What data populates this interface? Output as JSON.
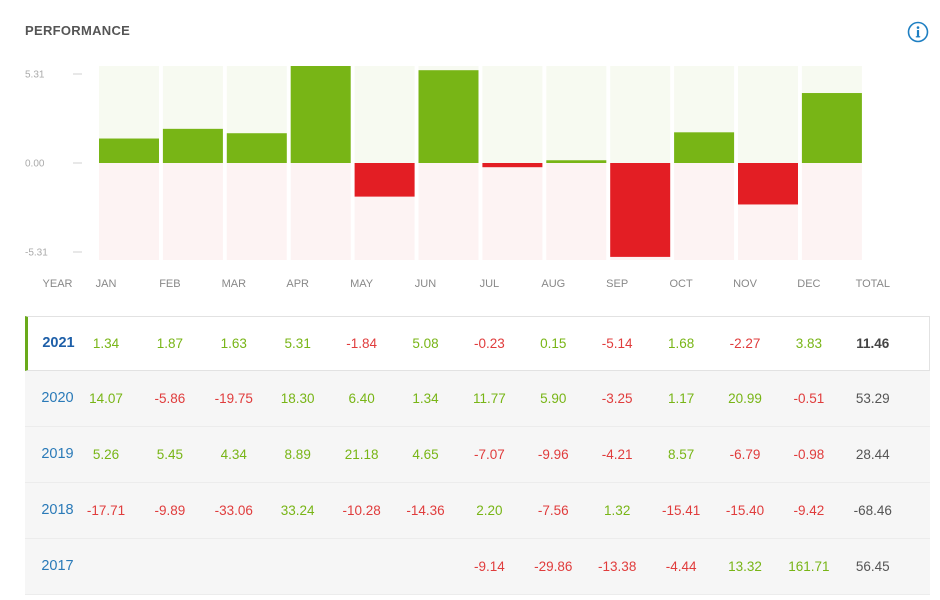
{
  "header": {
    "title": "PERFORMANCE",
    "info_icon": "info-icon"
  },
  "colors": {
    "positive": "#78b516",
    "negative": "#e31e24",
    "positive_bg": "#f7faf1",
    "negative_bg": "#fdf3f3",
    "year_link": "#2a7ab8",
    "selected_accent": "#6aaa1a"
  },
  "chart_data": {
    "type": "bar",
    "categories": [
      "JAN",
      "FEB",
      "MAR",
      "APR",
      "MAY",
      "JUN",
      "JUL",
      "AUG",
      "SEP",
      "OCT",
      "NOV",
      "DEC"
    ],
    "values": [
      1.34,
      1.87,
      1.63,
      5.31,
      -1.84,
      5.08,
      -0.23,
      0.15,
      -5.14,
      1.68,
      -2.27,
      3.83
    ],
    "ylim": [
      -5.31,
      5.31
    ],
    "yticks": [
      "5.31",
      "0.00",
      "-5.31"
    ],
    "year": "2021",
    "grid": false
  },
  "table": {
    "headers": [
      "YEAR",
      "JAN",
      "FEB",
      "MAR",
      "APR",
      "MAY",
      "JUN",
      "JUL",
      "AUG",
      "SEP",
      "OCT",
      "NOV",
      "DEC",
      "TOTAL"
    ],
    "rows": [
      {
        "year": "2021",
        "selected": true,
        "values": [
          "1.34",
          "1.87",
          "1.63",
          "5.31",
          "-1.84",
          "5.08",
          "-0.23",
          "0.15",
          "-5.14",
          "1.68",
          "-2.27",
          "3.83"
        ],
        "total": "11.46"
      },
      {
        "year": "2020",
        "selected": false,
        "values": [
          "14.07",
          "-5.86",
          "-19.75",
          "18.30",
          "6.40",
          "1.34",
          "11.77",
          "5.90",
          "-3.25",
          "1.17",
          "20.99",
          "-0.51"
        ],
        "total": "53.29"
      },
      {
        "year": "2019",
        "selected": false,
        "values": [
          "5.26",
          "5.45",
          "4.34",
          "8.89",
          "21.18",
          "4.65",
          "-7.07",
          "-9.96",
          "-4.21",
          "8.57",
          "-6.79",
          "-0.98"
        ],
        "total": "28.44"
      },
      {
        "year": "2018",
        "selected": false,
        "values": [
          "-17.71",
          "-9.89",
          "-33.06",
          "33.24",
          "-10.28",
          "-14.36",
          "2.20",
          "-7.56",
          "1.32",
          "-15.41",
          "-15.40",
          "-9.42"
        ],
        "total": "-68.46"
      },
      {
        "year": "2017",
        "selected": false,
        "values": [
          "",
          "",
          "",
          "",
          "",
          "",
          "-9.14",
          "-29.86",
          "-13.38",
          "-4.44",
          "13.32",
          "161.71"
        ],
        "total": "56.45"
      }
    ]
  }
}
